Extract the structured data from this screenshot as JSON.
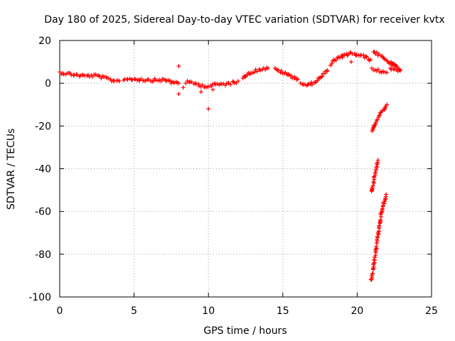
{
  "chart_data": {
    "type": "scatter",
    "title": "Day 180 of 2025, Sidereal Day-to-day VTEC variation (SDTVAR) for receiver kvtx",
    "xlabel": "GPS time / hours",
    "ylabel": "SDTVAR / TECUs",
    "xlim": [
      0,
      25
    ],
    "ylim": [
      -100,
      20
    ],
    "xticks": [
      0,
      5,
      10,
      15,
      20,
      25
    ],
    "yticks": [
      20,
      0,
      -20,
      -40,
      -60,
      -80,
      -100
    ],
    "grid": true,
    "marker": "+",
    "marker_color": "#ff0000",
    "series": [
      {
        "name": "main",
        "segments": [
          [
            [
              0,
              5
            ],
            [
              0.5,
              4.5
            ],
            [
              1,
              4
            ],
            [
              1.5,
              3.5
            ],
            [
              2,
              3.5
            ],
            [
              2.5,
              3.5
            ],
            [
              3,
              2.5
            ],
            [
              3.5,
              1.5
            ],
            [
              4,
              1
            ]
          ],
          [
            [
              4.3,
              2
            ],
            [
              5,
              2
            ],
            [
              6,
              1.5
            ],
            [
              7,
              1.5
            ],
            [
              7.5,
              1
            ],
            [
              8,
              0
            ]
          ],
          [
            [
              8.5,
              0.5
            ],
            [
              9,
              0
            ],
            [
              9.5,
              -1
            ],
            [
              10,
              -1.5
            ],
            [
              10.5,
              -0.5
            ],
            [
              11,
              -0.5
            ],
            [
              11.5,
              0
            ],
            [
              12,
              1
            ]
          ],
          [
            [
              12.3,
              3
            ],
            [
              12.6,
              4
            ],
            [
              13,
              5.5
            ],
            [
              13.5,
              6.5
            ],
            [
              14,
              7
            ]
          ],
          [
            [
              14.5,
              6.5
            ],
            [
              15,
              5
            ],
            [
              15.5,
              3.5
            ],
            [
              16,
              2
            ]
          ],
          [
            [
              16.2,
              0
            ],
            [
              16.7,
              -1
            ],
            [
              17,
              0
            ],
            [
              17.3,
              1.5
            ],
            [
              17.6,
              3
            ],
            [
              18,
              6
            ]
          ],
          [
            [
              18.2,
              9
            ],
            [
              18.5,
              11
            ],
            [
              19,
              12.5
            ],
            [
              19.5,
              14
            ],
            [
              19.8,
              14
            ],
            [
              20,
              13
            ],
            [
              20.5,
              12.5
            ],
            [
              20.9,
              11
            ]
          ],
          [
            [
              21,
              6.5
            ],
            [
              21.3,
              6
            ],
            [
              21.7,
              5.5
            ],
            [
              22,
              5
            ]
          ],
          [
            [
              22.2,
              7
            ],
            [
              22.5,
              6.5
            ],
            [
              22.9,
              6
            ]
          ],
          [
            [
              21.1,
              15
            ],
            [
              21.5,
              13
            ],
            [
              21.9,
              11
            ],
            [
              22.2,
              9.5
            ],
            [
              22.6,
              8
            ]
          ],
          [
            [
              22.3,
              9
            ],
            [
              22.6,
              8
            ],
            [
              22.9,
              6
            ]
          ]
        ],
        "outliers": [
          [
            8,
            8
          ],
          [
            8,
            -5
          ],
          [
            8.3,
            -2
          ],
          [
            9.5,
            -4
          ],
          [
            10,
            -12
          ],
          [
            10.3,
            -3
          ],
          [
            7.5,
            0
          ],
          [
            19,
            12
          ],
          [
            19.6,
            10
          ]
        ]
      },
      {
        "name": "drop-1",
        "segments": [
          [
            [
              21.0,
              -23
            ],
            [
              21.2,
              -19
            ],
            [
              21.5,
              -15
            ],
            [
              21.8,
              -12
            ],
            [
              22.0,
              -10
            ]
          ]
        ]
      },
      {
        "name": "drop-2",
        "segments": [
          [
            [
              20.95,
              -51
            ],
            [
              21.1,
              -46
            ],
            [
              21.25,
              -41
            ],
            [
              21.4,
              -36
            ]
          ]
        ]
      },
      {
        "name": "drop-3",
        "segments": [
          [
            [
              20.95,
              -92
            ],
            [
              21.1,
              -85
            ],
            [
              21.3,
              -76
            ],
            [
              21.5,
              -66
            ],
            [
              21.7,
              -58
            ],
            [
              21.95,
              -52
            ]
          ]
        ]
      }
    ]
  }
}
